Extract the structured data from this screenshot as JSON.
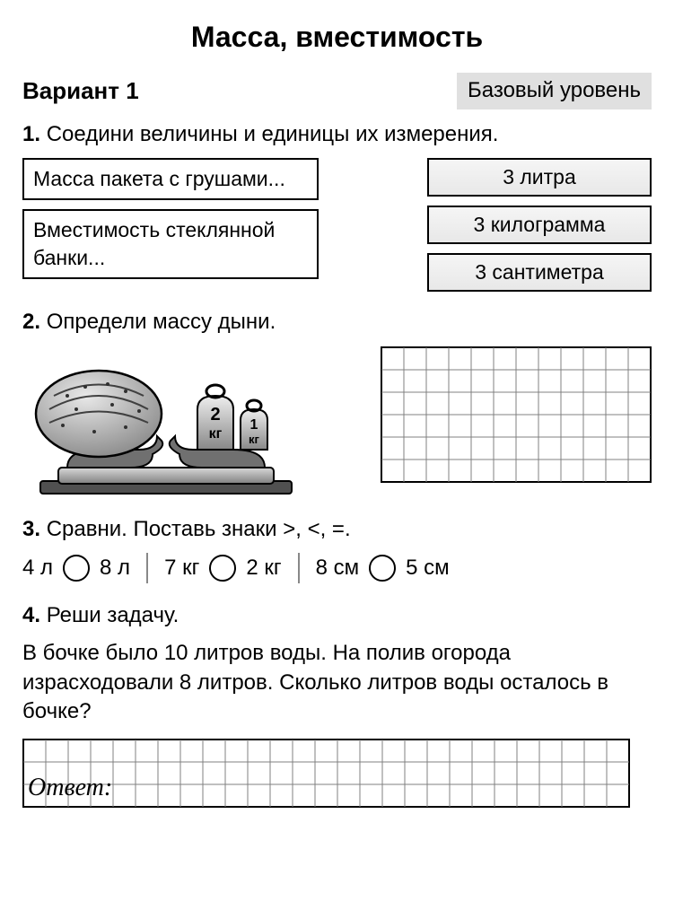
{
  "title": "Масса, вместимость",
  "variant": "Вариант 1",
  "level": "Базовый уровень",
  "task1": {
    "num": "1.",
    "text": "Соедини величины и единицы их измерения.",
    "left": [
      "Масса пакета с грушами...",
      "Вместимость стеклянной банки..."
    ],
    "right": [
      "3 литра",
      "3 килограмма",
      "3 сантиметра"
    ]
  },
  "task2": {
    "num": "2.",
    "text": "Определи массу дыни.",
    "weights": {
      "w1": "2",
      "w1u": "кг",
      "w2": "1",
      "w2u": "кг"
    },
    "grid": {
      "cols": 12,
      "rows": 6,
      "cell": 25
    }
  },
  "task3": {
    "num": "3.",
    "text": "Сравни. Поставь знаки >, <, =.",
    "pairs": [
      {
        "a": "4 л",
        "b": "8 л"
      },
      {
        "a": "7 кг",
        "b": "2 кг"
      },
      {
        "a": "8 см",
        "b": "5 см"
      }
    ]
  },
  "task4": {
    "num": "4.",
    "text": "Реши задачу.",
    "body": "В бочке было 10 литров воды. На полив огорода израсходовали 8 литров. Сколько литров воды осталось в бочке?",
    "answer_label": "Ответ:",
    "grid": {
      "cols": 27,
      "rows": 3,
      "cell": 25
    }
  },
  "colors": {
    "border": "#000000",
    "grid": "#808080",
    "metal_light": "#d0d0d0",
    "metal_dark": "#606060",
    "melon": "#b8b8b8"
  }
}
